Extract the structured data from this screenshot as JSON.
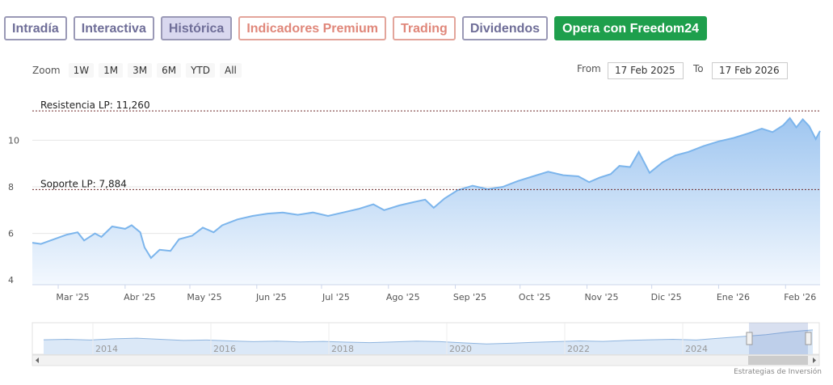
{
  "tabs": [
    {
      "label": "Intradía",
      "style": "normal"
    },
    {
      "label": "Interactiva",
      "style": "normal"
    },
    {
      "label": "Histórica",
      "style": "active"
    },
    {
      "label": "Indicadores Premium",
      "style": "premium"
    },
    {
      "label": "Trading",
      "style": "premium"
    },
    {
      "label": "Dividendos",
      "style": "normal"
    },
    {
      "label": "Opera con Freedom24",
      "style": "cta"
    }
  ],
  "zoom": {
    "label": "Zoom",
    "buttons": [
      "1W",
      "1M",
      "3M",
      "6M",
      "YTD",
      "All"
    ]
  },
  "range": {
    "from_label": "From",
    "from_value": "17 Feb 2025",
    "to_label": "To",
    "to_value": "17 Feb 2026"
  },
  "credit": "Estrategias de Inversión",
  "colors": {
    "line": "#7cb5ec",
    "area_top": "#9fc6f0",
    "area_bottom": "#f3f8fe",
    "level_line": "#6e2a2a",
    "cta": "#1e9f4c"
  },
  "chart_data": {
    "type": "area",
    "x_start": "2025-02-17",
    "x_end": "2026-02-17",
    "xticks": [
      "Mar '25",
      "Abr '25",
      "May '25",
      "Jun '25",
      "Jul '25",
      "Ago '25",
      "Sep '25",
      "Oct '25",
      "Nov '25",
      "Dic '25",
      "Ene '26",
      "Feb '26"
    ],
    "yticks": [
      "4",
      "6",
      "8",
      "10"
    ],
    "ylim": [
      3.8,
      12.2
    ],
    "points": [
      [
        "2025-02-17",
        5.6
      ],
      [
        "2025-02-21",
        5.55
      ],
      [
        "2025-02-27",
        5.75
      ],
      [
        "2025-03-05",
        5.95
      ],
      [
        "2025-03-10",
        6.05
      ],
      [
        "2025-03-13",
        5.7
      ],
      [
        "2025-03-18",
        6.0
      ],
      [
        "2025-03-21",
        5.85
      ],
      [
        "2025-03-26",
        6.3
      ],
      [
        "2025-04-01",
        6.2
      ],
      [
        "2025-04-04",
        6.35
      ],
      [
        "2025-04-08",
        6.05
      ],
      [
        "2025-04-10",
        5.4
      ],
      [
        "2025-04-13",
        4.95
      ],
      [
        "2025-04-17",
        5.3
      ],
      [
        "2025-04-22",
        5.25
      ],
      [
        "2025-04-26",
        5.75
      ],
      [
        "2025-05-02",
        5.9
      ],
      [
        "2025-05-07",
        6.25
      ],
      [
        "2025-05-12",
        6.05
      ],
      [
        "2025-05-16",
        6.35
      ],
      [
        "2025-05-23",
        6.6
      ],
      [
        "2025-05-30",
        6.75
      ],
      [
        "2025-06-06",
        6.85
      ],
      [
        "2025-06-13",
        6.9
      ],
      [
        "2025-06-20",
        6.8
      ],
      [
        "2025-06-27",
        6.9
      ],
      [
        "2025-07-04",
        6.75
      ],
      [
        "2025-07-11",
        6.9
      ],
      [
        "2025-07-18",
        7.05
      ],
      [
        "2025-07-25",
        7.25
      ],
      [
        "2025-07-30",
        7.0
      ],
      [
        "2025-08-06",
        7.2
      ],
      [
        "2025-08-13",
        7.35
      ],
      [
        "2025-08-18",
        7.45
      ],
      [
        "2025-08-22",
        7.1
      ],
      [
        "2025-08-27",
        7.5
      ],
      [
        "2025-09-02",
        7.85
      ],
      [
        "2025-09-09",
        8.05
      ],
      [
        "2025-09-16",
        7.9
      ],
      [
        "2025-09-23",
        8.0
      ],
      [
        "2025-09-30",
        8.25
      ],
      [
        "2025-10-07",
        8.45
      ],
      [
        "2025-10-14",
        8.65
      ],
      [
        "2025-10-21",
        8.5
      ],
      [
        "2025-10-28",
        8.45
      ],
      [
        "2025-11-02",
        8.2
      ],
      [
        "2025-11-07",
        8.4
      ],
      [
        "2025-11-12",
        8.55
      ],
      [
        "2025-11-16",
        8.9
      ],
      [
        "2025-11-21",
        8.85
      ],
      [
        "2025-11-25",
        9.5
      ],
      [
        "2025-11-30",
        8.6
      ],
      [
        "2025-12-06",
        9.05
      ],
      [
        "2025-12-12",
        9.35
      ],
      [
        "2025-12-18",
        9.5
      ],
      [
        "2025-12-25",
        9.75
      ],
      [
        "2026-01-01",
        9.95
      ],
      [
        "2026-01-08",
        10.1
      ],
      [
        "2026-01-15",
        10.3
      ],
      [
        "2026-01-21",
        10.5
      ],
      [
        "2026-01-26",
        10.35
      ],
      [
        "2026-01-31",
        10.65
      ],
      [
        "2026-02-03",
        10.95
      ],
      [
        "2026-02-06",
        10.55
      ],
      [
        "2026-02-09",
        10.9
      ],
      [
        "2026-02-12",
        10.6
      ],
      [
        "2026-02-15",
        10.05
      ],
      [
        "2026-02-17",
        10.4
      ]
    ],
    "levels": [
      {
        "label": "Resistencia LP: 11,260",
        "value": 11.26
      },
      {
        "label": "Soporte LP: 7,884",
        "value": 7.884
      }
    ],
    "navigator": {
      "xticks": [
        "2014",
        "2016",
        "2018",
        "2020",
        "2022",
        "2024"
      ],
      "series": [
        0.48,
        0.5,
        0.47,
        0.52,
        0.55,
        0.5,
        0.45,
        0.47,
        0.43,
        0.4,
        0.42,
        0.39,
        0.41,
        0.38,
        0.36,
        0.39,
        0.42,
        0.4,
        0.35,
        0.3,
        0.33,
        0.37,
        0.4,
        0.43,
        0.41,
        0.45,
        0.48,
        0.5,
        0.47,
        0.55,
        0.62,
        0.7,
        0.82,
        0.9
      ]
    }
  }
}
